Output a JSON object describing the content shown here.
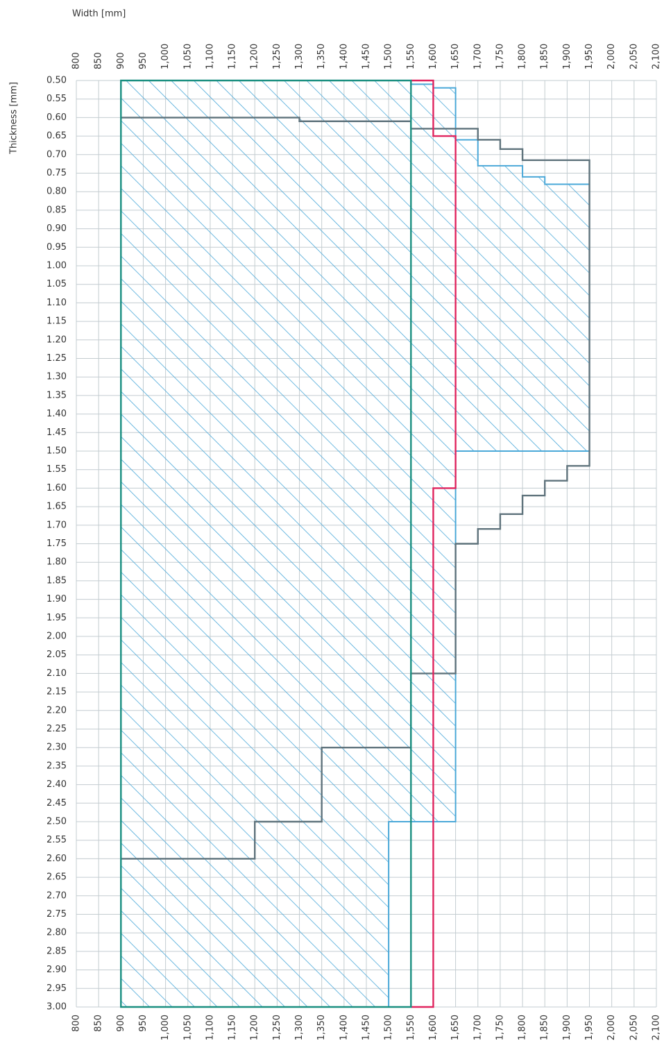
{
  "chart_data": {
    "type": "line",
    "x_label": "Width [mm]",
    "y_label": "Thickness [mm]",
    "xlim": [
      800,
      2100
    ],
    "ylim": [
      0.5,
      3.0
    ],
    "grid": true,
    "xticks": [
      800,
      850,
      900,
      950,
      {
        "value": 1000,
        "label": "1,000"
      },
      {
        "value": 1050,
        "label": "1,050"
      },
      {
        "value": 1100,
        "label": "1,100"
      },
      {
        "value": 1150,
        "label": "1,150"
      },
      {
        "value": 1200,
        "label": "1,200"
      },
      {
        "value": 1250,
        "label": "1,250"
      },
      {
        "value": 1300,
        "label": "1,300"
      },
      {
        "value": 1350,
        "label": "1,350"
      },
      {
        "value": 1400,
        "label": "1,400"
      },
      {
        "value": 1450,
        "label": "1,450"
      },
      {
        "value": 1500,
        "label": "1,500"
      },
      {
        "value": 1550,
        "label": "1,550"
      },
      {
        "value": 1600,
        "label": "1,600"
      },
      {
        "value": 1650,
        "label": "1,650"
      },
      {
        "value": 1700,
        "label": "1,700"
      },
      {
        "value": 1750,
        "label": "1,750"
      },
      {
        "value": 1800,
        "label": "1,800"
      },
      {
        "value": 1850,
        "label": "1,850"
      },
      {
        "value": 1900,
        "label": "1,900"
      },
      {
        "value": 1950,
        "label": "1,950"
      },
      {
        "value": 2000,
        "label": "2,000"
      },
      {
        "value": 2050,
        "label": "2,050"
      },
      {
        "value": 2100,
        "label": "2,100"
      }
    ],
    "yticks": [
      {
        "value": 0.5,
        "label": "0.50"
      },
      {
        "value": 0.55,
        "label": "0.55"
      },
      {
        "value": 0.6,
        "label": "0.60"
      },
      {
        "value": 0.65,
        "label": "0.65"
      },
      {
        "value": 0.7,
        "label": "0.70"
      },
      {
        "value": 0.75,
        "label": "0.75"
      },
      {
        "value": 0.8,
        "label": "0.80"
      },
      {
        "value": 0.85,
        "label": "0.85"
      },
      {
        "value": 0.9,
        "label": "0.90"
      },
      {
        "value": 0.95,
        "label": "0.95"
      },
      {
        "value": 1.0,
        "label": "1.00"
      },
      {
        "value": 1.05,
        "label": "1.05"
      },
      {
        "value": 1.1,
        "label": "1.10"
      },
      {
        "value": 1.15,
        "label": "1.15"
      },
      {
        "value": 1.2,
        "label": "1.20"
      },
      {
        "value": 1.25,
        "label": "1.25"
      },
      {
        "value": 1.3,
        "label": "1.30"
      },
      {
        "value": 1.35,
        "label": "1.35"
      },
      {
        "value": 1.4,
        "label": "1.40"
      },
      {
        "value": 1.45,
        "label": "1.45"
      },
      {
        "value": 1.5,
        "label": "1.50"
      },
      {
        "value": 1.55,
        "label": "1.55"
      },
      {
        "value": 1.6,
        "label": "1.60"
      },
      {
        "value": 1.65,
        "label": "1.65"
      },
      {
        "value": 1.7,
        "label": "1.70"
      },
      {
        "value": 1.75,
        "label": "1.75"
      },
      {
        "value": 1.8,
        "label": "1.80"
      },
      {
        "value": 1.85,
        "label": "1.85"
      },
      {
        "value": 1.9,
        "label": "1.90"
      },
      {
        "value": 1.95,
        "label": "1.95"
      },
      {
        "value": 2.0,
        "label": "2.00"
      },
      {
        "value": 2.05,
        "label": "2.05"
      },
      {
        "value": 2.1,
        "label": "2.10"
      },
      {
        "value": 2.15,
        "label": "2.15"
      },
      {
        "value": 2.2,
        "label": "2.20"
      },
      {
        "value": 2.25,
        "label": "2.25"
      },
      {
        "value": 2.3,
        "label": "2.30"
      },
      {
        "value": 2.35,
        "label": "2.35"
      },
      {
        "value": 2.4,
        "label": "2.40"
      },
      {
        "value": 2.45,
        "label": "2.45"
      },
      {
        "value": 2.5,
        "label": "2.50"
      },
      {
        "value": 2.55,
        "label": "2.55"
      },
      {
        "value": 2.6,
        "label": "2.60"
      },
      {
        "value": 2.65,
        "label": "2.65"
      },
      {
        "value": 2.7,
        "label": "2.70"
      },
      {
        "value": 2.75,
        "label": "2.75"
      },
      {
        "value": 2.8,
        "label": "2.80"
      },
      {
        "value": 2.85,
        "label": "2.85"
      },
      {
        "value": 2.9,
        "label": "2.90"
      },
      {
        "value": 2.95,
        "label": "2.95"
      },
      {
        "value": 3.0,
        "label": "3.00"
      }
    ],
    "series": [
      {
        "color": "#4aa8d8",
        "hatch": true,
        "closed": true,
        "x": [
          900,
          1550,
          1550,
          1600,
          1600,
          1650,
          1650,
          1700,
          1700,
          1800,
          1800,
          1850,
          1850,
          1950,
          1950,
          1650,
          1650,
          1500,
          1500,
          900
        ],
        "values": [
          0.5,
          0.5,
          0.51,
          0.51,
          0.52,
          0.52,
          0.66,
          0.66,
          0.73,
          0.73,
          0.76,
          0.76,
          0.78,
          0.78,
          1.5,
          1.5,
          2.5,
          2.5,
          3.0,
          3.0
        ]
      },
      {
        "color": "#5f737c",
        "hatch": false,
        "closed": false,
        "x": [
          900,
          1300,
          1300,
          1550,
          1550,
          1700,
          1700,
          1750,
          1750,
          1800,
          1800,
          1950,
          1950,
          1900,
          1900,
          1850,
          1850,
          1800,
          1800,
          1750,
          1750,
          1700,
          1700,
          1650,
          1650,
          1550,
          1550,
          1350,
          1350,
          1200,
          1200,
          900
        ],
        "values": [
          0.6,
          0.6,
          0.61,
          0.61,
          0.63,
          0.63,
          0.66,
          0.66,
          0.685,
          0.685,
          0.715,
          0.715,
          1.54,
          1.54,
          1.58,
          1.58,
          1.62,
          1.62,
          1.67,
          1.67,
          1.71,
          1.71,
          1.75,
          1.75,
          2.1,
          2.1,
          2.3,
          2.3,
          2.5,
          2.5,
          2.6,
          2.6
        ]
      },
      {
        "color": "#e0245e",
        "hatch": false,
        "closed": false,
        "x": [
          1550,
          1600,
          1600,
          1650,
          1650,
          1600,
          1600,
          1550
        ],
        "values": [
          0.5,
          0.5,
          0.65,
          0.65,
          1.6,
          1.6,
          3.0,
          3.0
        ]
      },
      {
        "color": "#1a8f80",
        "hatch": false,
        "closed": true,
        "x": [
          900,
          1550,
          1550,
          900
        ],
        "values": [
          0.5,
          0.5,
          3.0,
          3.0
        ]
      }
    ]
  }
}
